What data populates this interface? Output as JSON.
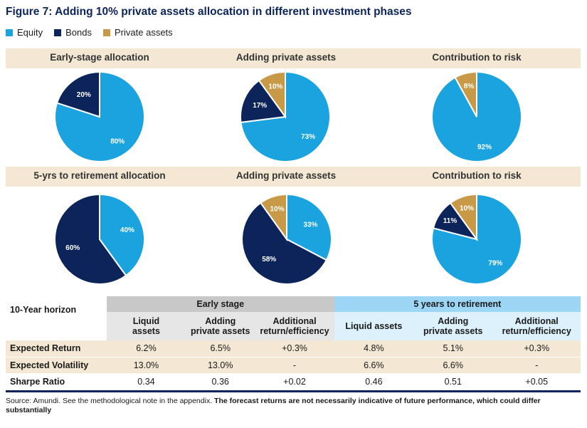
{
  "title": "Figure 7: Adding 10% private assets allocation in different investment phases",
  "legend": [
    {
      "label": "Equity",
      "color": "#1ba3e0"
    },
    {
      "label": "Bonds",
      "color": "#0c2459"
    },
    {
      "label": "Private assets",
      "color": "#c89a48"
    }
  ],
  "chart_data": [
    {
      "type": "pie",
      "title": "Early-stage allocation",
      "slices": [
        {
          "name": "Equity",
          "value": 80,
          "label": "80%"
        },
        {
          "name": "Bonds",
          "value": 20,
          "label": "20%"
        }
      ]
    },
    {
      "type": "pie",
      "title": "Adding private assets",
      "slices": [
        {
          "name": "Equity",
          "value": 73,
          "label": "73%"
        },
        {
          "name": "Bonds",
          "value": 17,
          "label": "17%"
        },
        {
          "name": "Private assets",
          "value": 10,
          "label": "10%"
        }
      ]
    },
    {
      "type": "pie",
      "title": "Contribution to risk",
      "slices": [
        {
          "name": "Equity",
          "value": 92,
          "label": "92%"
        },
        {
          "name": "Private assets",
          "value": 8,
          "label": "8%"
        }
      ]
    },
    {
      "type": "pie",
      "title": "5-yrs to retirement allocation",
      "slices": [
        {
          "name": "Equity",
          "value": 40,
          "label": "40%"
        },
        {
          "name": "Bonds",
          "value": 60,
          "label": "60%"
        }
      ]
    },
    {
      "type": "pie",
      "title": "Adding private assets",
      "slices": [
        {
          "name": "Equity",
          "value": 33,
          "label": "33%"
        },
        {
          "name": "Bonds",
          "value": 58,
          "label": "58%"
        },
        {
          "name": "Private assets",
          "value": 10,
          "label": "10%"
        }
      ]
    },
    {
      "type": "pie",
      "title": "Contribution to risk",
      "slices": [
        {
          "name": "Equity",
          "value": 79,
          "label": "79%"
        },
        {
          "name": "Bonds",
          "value": 11,
          "label": "11%"
        },
        {
          "name": "Private assets",
          "value": 10,
          "label": "10%"
        }
      ]
    },
    {
      "type": "table",
      "horizon": "10-Year horizon",
      "groups": [
        "Early stage",
        "5 years to retirement"
      ],
      "columns": [
        "Liquid assets",
        "Adding private assets",
        "Additional return/efficiency",
        "Liquid assets",
        "Adding private assets",
        "Additional return/efficiency"
      ],
      "rows": [
        {
          "label": "Expected Return",
          "cells": [
            "6.2%",
            "6.5%",
            "+0.3%",
            "4.8%",
            "5.1%",
            "+0.3%"
          ]
        },
        {
          "label": "Expected Volatility",
          "cells": [
            "13.0%",
            "13.0%",
            "-",
            "6.6%",
            "6.6%",
            "-"
          ]
        },
        {
          "label": "Sharpe Ratio",
          "cells": [
            "0.34",
            "0.36",
            "+0.02",
            "0.46",
            "0.51",
            "+0.05"
          ]
        }
      ]
    }
  ],
  "table_headers": {
    "early": {
      "c1a": "Liquid",
      "c1b": "assets",
      "c2a": "Adding",
      "c2b": "private assets",
      "c3a": "Additional",
      "c3b": "return/efficiency"
    },
    "five": {
      "c1": "Liquid assets",
      "c2a": "Adding",
      "c2b": "private assets",
      "c3a": "Additional",
      "c3b": "return/efficiency"
    }
  },
  "source": {
    "prefix": "Source: Amundi. See the methodological note in the appendix. ",
    "bold": "The forecast returns are not necessarily indicative of future performance, which could differ substantially"
  }
}
